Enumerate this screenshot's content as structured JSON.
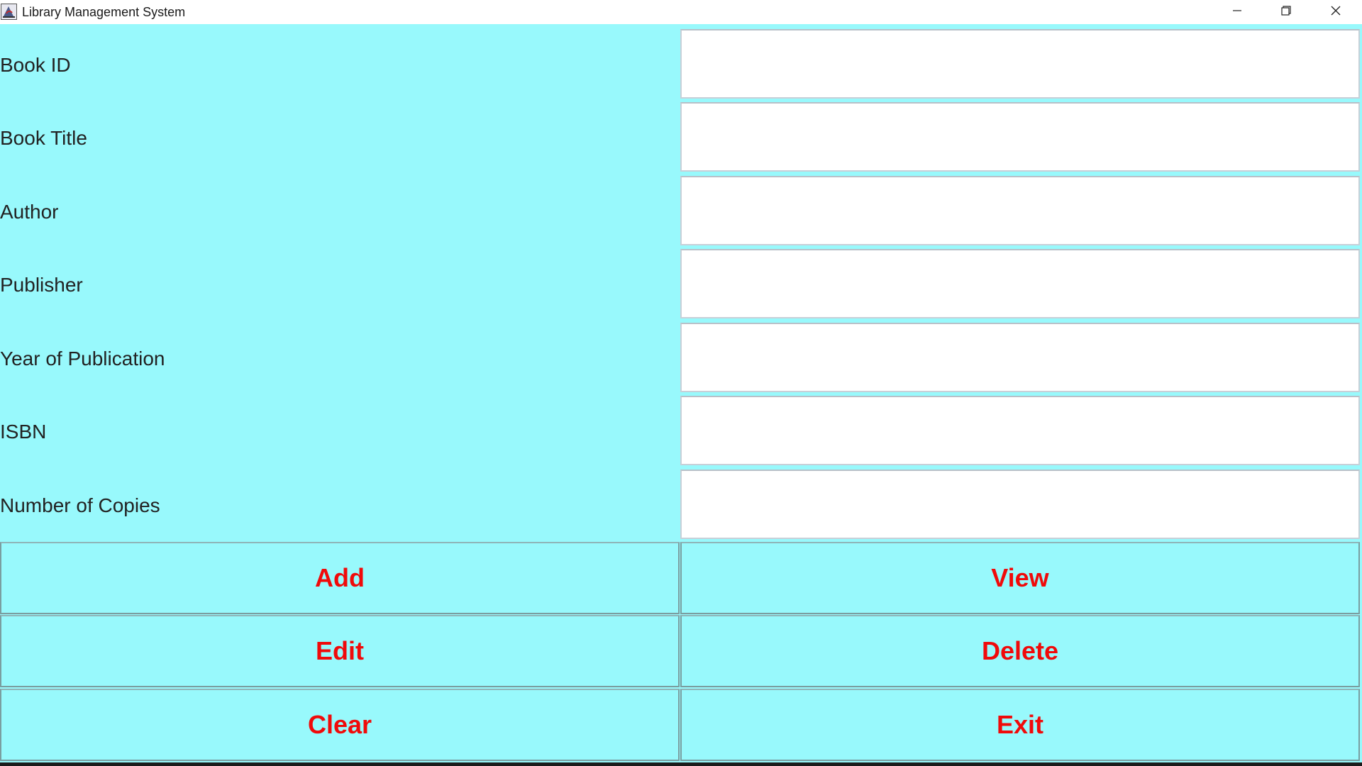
{
  "window": {
    "title": "Library Management System",
    "app_icon": "java-app-icon",
    "controls": [
      "minimize-icon",
      "restore-icon",
      "close-icon"
    ]
  },
  "form": {
    "fields": [
      {
        "label": "Book ID",
        "value": ""
      },
      {
        "label": "Book Title",
        "value": ""
      },
      {
        "label": "Author",
        "value": ""
      },
      {
        "label": "Publisher",
        "value": ""
      },
      {
        "label": "Year of Publication",
        "value": ""
      },
      {
        "label": "ISBN",
        "value": ""
      },
      {
        "label": "Number of Copies",
        "value": ""
      }
    ]
  },
  "buttons": {
    "add": "Add",
    "view": "View",
    "edit": "Edit",
    "delete": "Delete",
    "clear": "Clear",
    "exit": "Exit"
  },
  "colors": {
    "background": "#98f9fc",
    "button_text": "#f00a0a",
    "field_background": "#ffffff"
  }
}
